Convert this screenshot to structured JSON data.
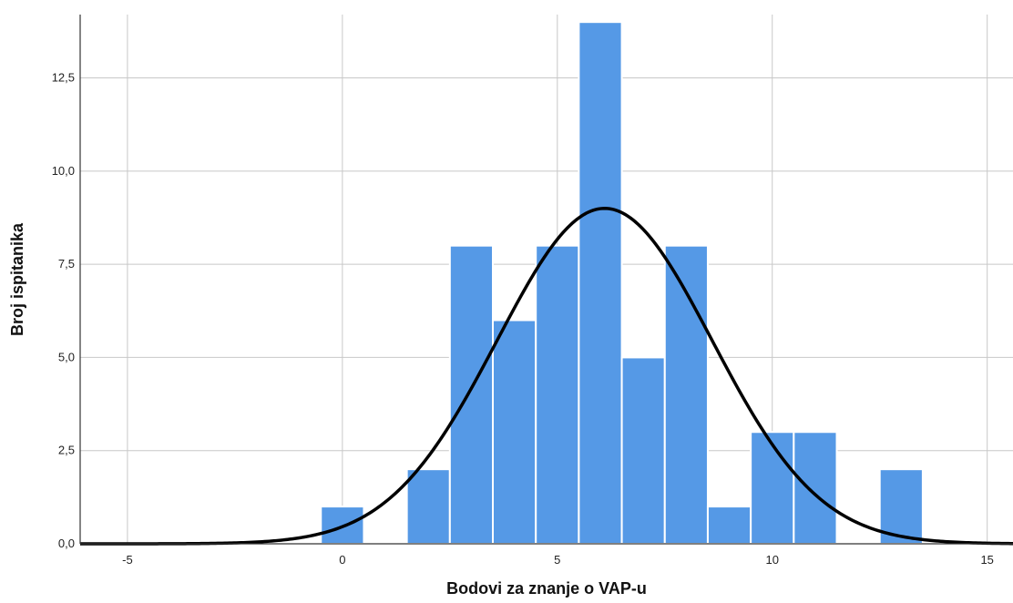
{
  "chart_data": {
    "type": "bar",
    "xlabel": "Bodovi za znanje o VAP-u",
    "ylabel": "Broj ispitanika",
    "xlim": [
      -6.1,
      15.6
    ],
    "ylim": [
      0,
      14.2
    ],
    "x_ticks": [
      {
        "value": -5,
        "label": "-5"
      },
      {
        "value": 0,
        "label": "0"
      },
      {
        "value": 5,
        "label": "5"
      },
      {
        "value": 10,
        "label": "10"
      },
      {
        "value": 15,
        "label": "15"
      }
    ],
    "y_ticks": [
      {
        "value": 0,
        "label": "0,0"
      },
      {
        "value": 2.5,
        "label": "2,5"
      },
      {
        "value": 5,
        "label": "5,0"
      },
      {
        "value": 7.5,
        "label": "7,5"
      },
      {
        "value": 10,
        "label": "10,0"
      },
      {
        "value": 12.5,
        "label": "12,5"
      }
    ],
    "grid": true,
    "bin_width": 1,
    "bins": [
      {
        "x": 0,
        "count": 1
      },
      {
        "x": 2,
        "count": 2
      },
      {
        "x": 3,
        "count": 8
      },
      {
        "x": 4,
        "count": 6
      },
      {
        "x": 5,
        "count": 8
      },
      {
        "x": 6,
        "count": 14
      },
      {
        "x": 7,
        "count": 5
      },
      {
        "x": 8,
        "count": 8
      },
      {
        "x": 9,
        "count": 1
      },
      {
        "x": 10,
        "count": 3
      },
      {
        "x": 11,
        "count": 3
      },
      {
        "x": 13,
        "count": 2
      }
    ],
    "normal_curve": {
      "mean": 6.1,
      "sd": 2.5,
      "peak": 9.0
    },
    "colors": {
      "bar": "#5599e6",
      "curve": "#000000",
      "grid": "#c8c8c8"
    }
  }
}
